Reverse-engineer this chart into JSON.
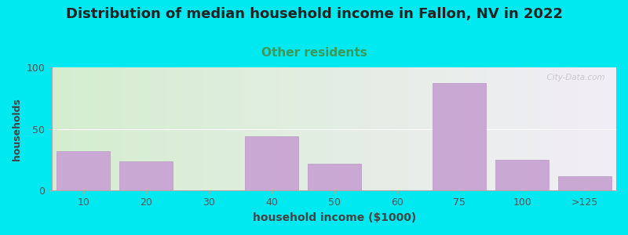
{
  "title": "Distribution of median household income in Fallon, NV in 2022",
  "subtitle": "Other residents",
  "xlabel": "household income ($1000)",
  "ylabel": "households",
  "title_fontsize": 13,
  "subtitle_fontsize": 11,
  "subtitle_color": "#3a9a5a",
  "xlabel_fontsize": 10,
  "ylabel_fontsize": 9,
  "background_outer": "#00e8f0",
  "background_inner_left": "#d4edcf",
  "background_inner_right": "#f2eef7",
  "bar_color": "#c9a8d4",
  "bar_edge_color": "#b898c4",
  "yticks": [
    0,
    50,
    100
  ],
  "ylim": [
    0,
    100
  ],
  "categories": [
    "10",
    "20",
    "30",
    "40",
    "50",
    "60",
    "75",
    "100",
    ">125"
  ],
  "values": [
    32,
    24,
    0,
    44,
    22,
    0,
    87,
    25,
    12
  ],
  "watermark": "  City-Data.com"
}
